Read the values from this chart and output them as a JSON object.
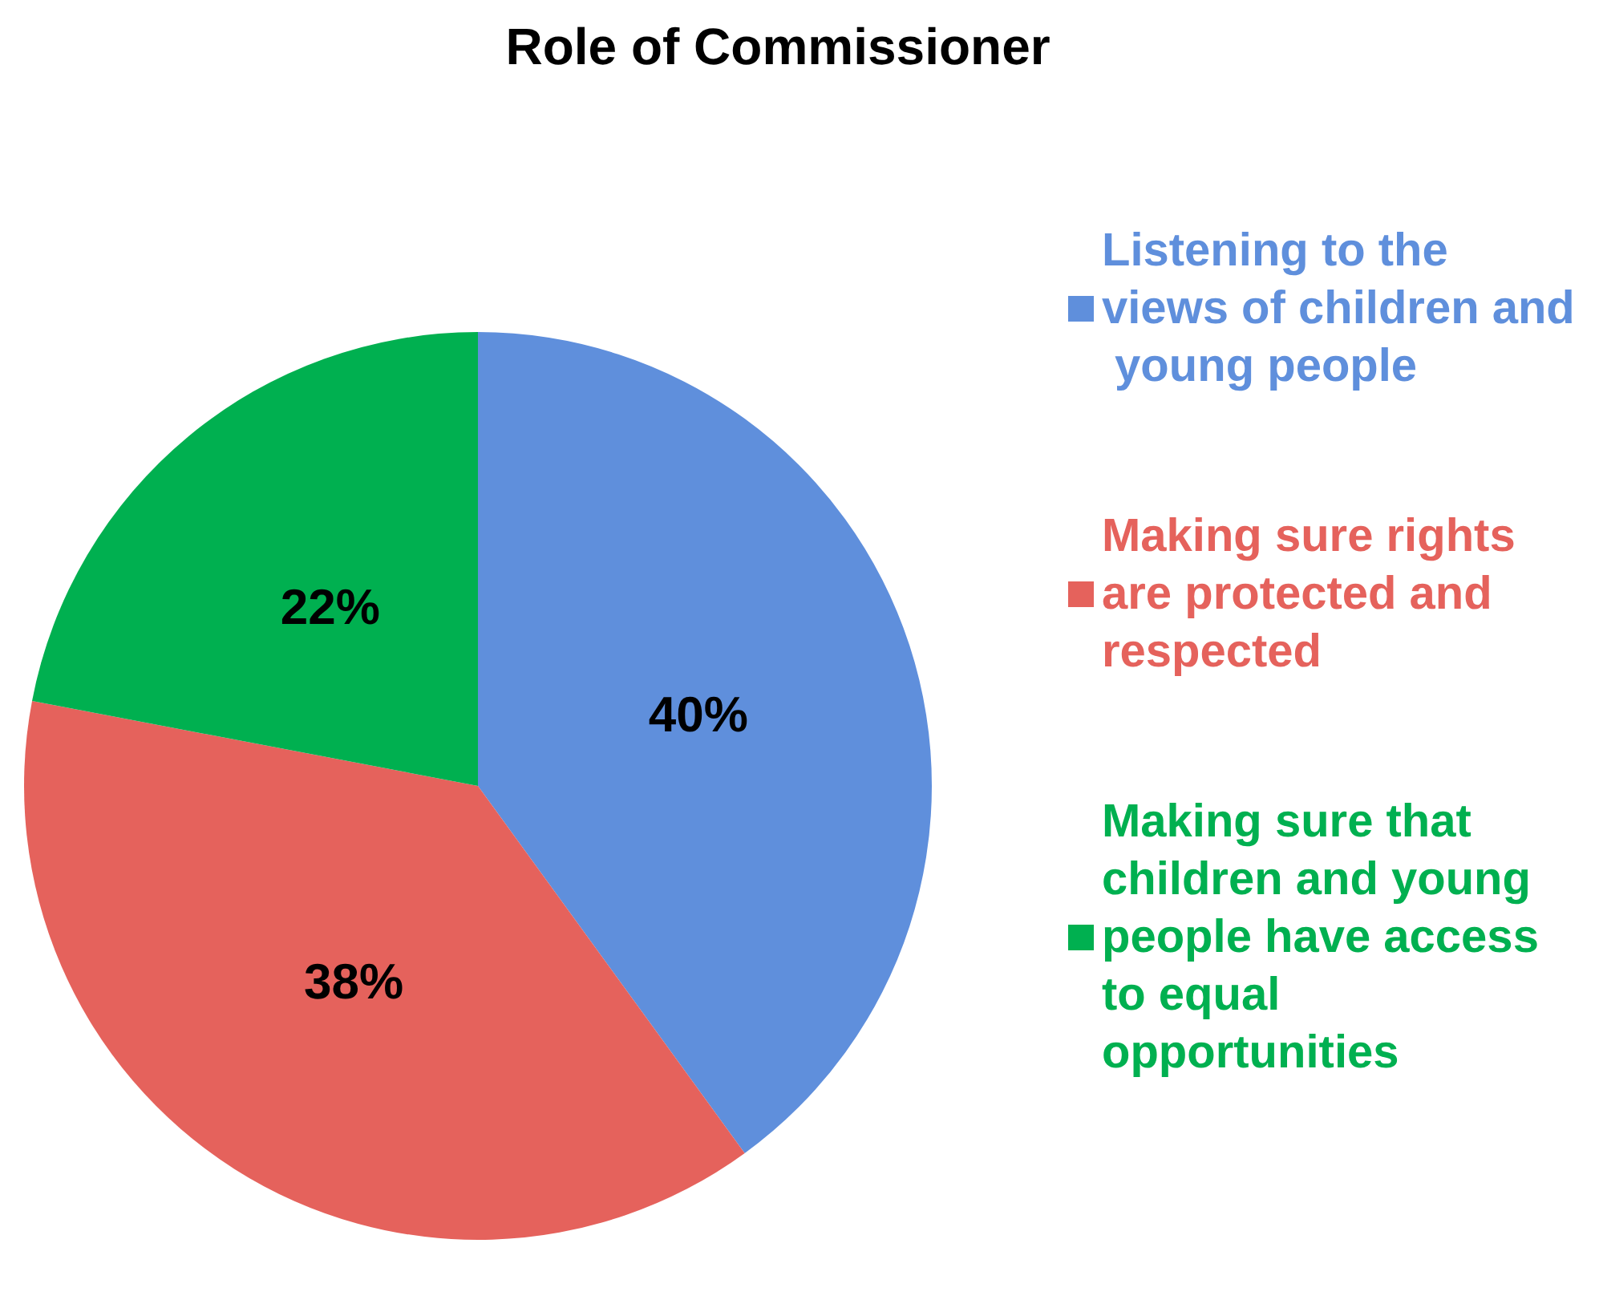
{
  "chart_data": {
    "type": "pie",
    "title": "Role of Commissioner",
    "categories": [
      "Listening to the views of children and young people",
      "Making sure rights are protected and respected",
      "Making sure that children and young people have access to equal opportunities"
    ],
    "values": [
      40,
      38,
      22
    ],
    "colors": [
      "#5f8fdc",
      "#e5625c",
      "#00b050"
    ],
    "value_labels": [
      "40%",
      "38%",
      "22%"
    ],
    "legend": "right"
  }
}
